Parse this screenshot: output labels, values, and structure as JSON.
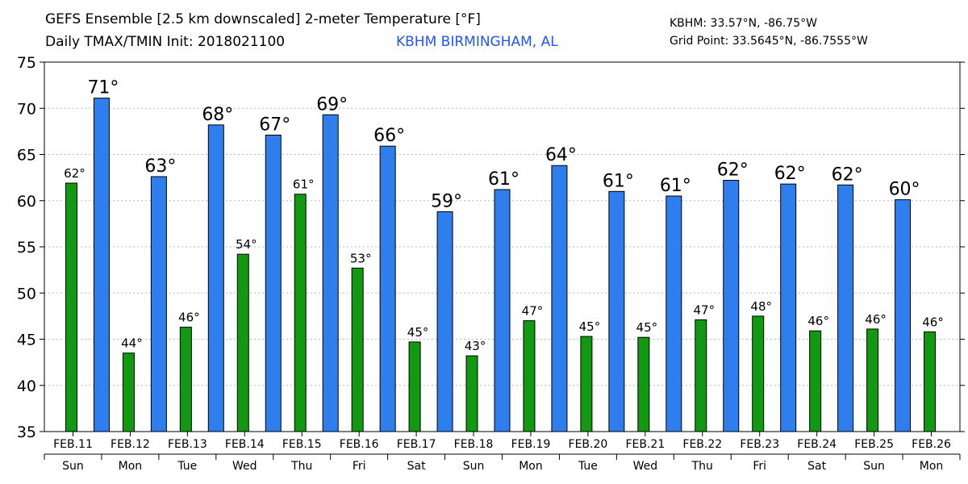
{
  "header": {
    "title_line1": "GEFS Ensemble [2.5 km downscaled] 2-meter Temperature [°F]",
    "title_line2": "Daily TMAX/TMIN Init: 2018021100",
    "station": "KBHM BIRMINGHAM, AL",
    "station_coords": "KBHM: 33.57°N, -86.75°W",
    "grid_point": "Grid Point: 33.5645°N, -86.7555°W"
  },
  "chart_data": {
    "type": "bar",
    "ylim": [
      35,
      75
    ],
    "y_ticks": [
      35,
      40,
      45,
      50,
      55,
      60,
      65,
      70,
      75
    ],
    "grid": true,
    "categories": [
      "FEB.11",
      "FEB.12",
      "FEB.13",
      "FEB.14",
      "FEB.15",
      "FEB.16",
      "FEB.17",
      "FEB.18",
      "FEB.19",
      "FEB.20",
      "FEB.21",
      "FEB.22",
      "FEB.23",
      "FEB.24",
      "FEB.25",
      "FEB.26"
    ],
    "weekdays": [
      "Sun",
      "Mon",
      "Tue",
      "Wed",
      "Thu",
      "Fri",
      "Sat",
      "Sun",
      "Mon",
      "Tue",
      "Wed",
      "Thu",
      "Fri",
      "Sat",
      "Sun",
      "Mon"
    ],
    "series": [
      {
        "key": "tmin",
        "color": "#119911",
        "values": [
          61.9,
          43.5,
          46.3,
          54.2,
          60.7,
          52.7,
          44.7,
          43.2,
          47.0,
          45.3,
          45.2,
          47.1,
          47.5,
          45.9,
          46.1,
          45.8
        ],
        "labels": [
          "62°",
          "44°",
          "46°",
          "54°",
          "61°",
          "53°",
          "45°",
          "43°",
          "47°",
          "45°",
          "45°",
          "47°",
          "48°",
          "46°",
          "46°",
          "46°"
        ]
      },
      {
        "key": "tmax",
        "color": "#2f7eee",
        "values": [
          71.1,
          62.6,
          68.2,
          67.1,
          69.3,
          65.9,
          58.8,
          61.2,
          63.8,
          61.0,
          60.5,
          62.2,
          61.8,
          61.7,
          60.1,
          null
        ],
        "labels": [
          "71°",
          "63°",
          "68°",
          "67°",
          "69°",
          "66°",
          "59°",
          "61°",
          "64°",
          "61°",
          "61°",
          "62°",
          "62°",
          "62°",
          "60°",
          ""
        ]
      }
    ]
  }
}
